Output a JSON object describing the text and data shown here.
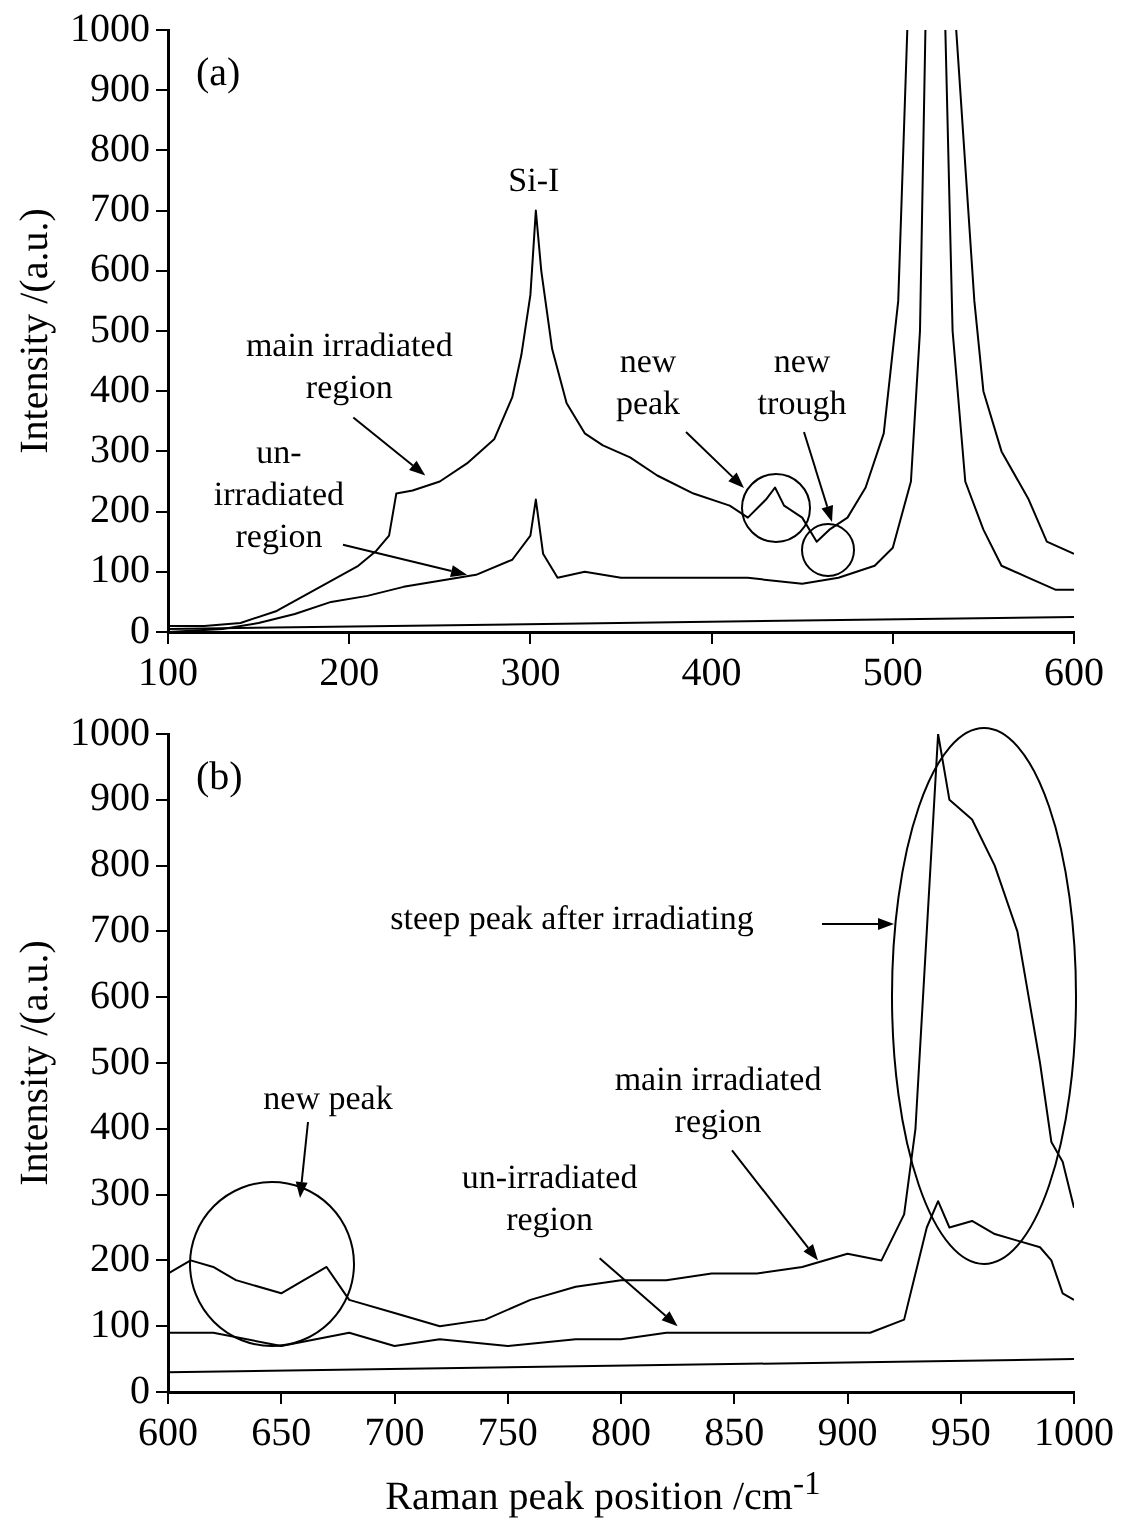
{
  "chart_data": [
    {
      "type": "line",
      "title": "(a)",
      "ylabel": "Intensity /(a.u.)",
      "xlim": [
        100,
        600
      ],
      "xticks": [
        100,
        200,
        300,
        400,
        500,
        600
      ],
      "ylim": [
        0,
        1000
      ],
      "yticks": [
        0,
        100,
        200,
        300,
        400,
        500,
        600,
        700,
        800,
        900,
        1000
      ],
      "grid": false,
      "legend": false,
      "marker": "none",
      "line_style": "solid",
      "series": [
        {
          "color": "#000000",
          "x": [
            100,
            120,
            140,
            160,
            175,
            190,
            205,
            215,
            222,
            226,
            235,
            250,
            265,
            280,
            290,
            295,
            300,
            303,
            306,
            312,
            320,
            330,
            340,
            355,
            370,
            390,
            410,
            420,
            430,
            435,
            440,
            450,
            458,
            465,
            475,
            485,
            495,
            503,
            508,
            520,
            535,
            545,
            550,
            560,
            575,
            585,
            600
          ],
          "values": [
            10,
            10,
            15,
            35,
            60,
            85,
            110,
            135,
            160,
            230,
            235,
            250,
            280,
            320,
            390,
            460,
            560,
            700,
            600,
            470,
            380,
            330,
            310,
            290,
            260,
            230,
            210,
            190,
            220,
            240,
            210,
            190,
            150,
            170,
            190,
            240,
            330,
            550,
            1000,
            null,
            1000,
            550,
            400,
            300,
            220,
            150,
            130
          ]
        },
        {
          "color": "#000000",
          "x": [
            100,
            130,
            150,
            170,
            190,
            210,
            230,
            250,
            270,
            290,
            300,
            303,
            307,
            315,
            330,
            350,
            380,
            420,
            450,
            470,
            490,
            500,
            510,
            515,
            518,
            524,
            529,
            533,
            540,
            550,
            560,
            575,
            590,
            600
          ],
          "values": [
            0,
            5,
            15,
            30,
            50,
            60,
            75,
            85,
            95,
            120,
            160,
            220,
            130,
            90,
            100,
            90,
            90,
            90,
            80,
            90,
            110,
            140,
            250,
            500,
            1000,
            null,
            1000,
            500,
            250,
            170,
            110,
            90,
            70,
            70
          ]
        },
        {
          "color": "#000000",
          "x": [
            100,
            600
          ],
          "values": [
            5,
            25
          ]
        }
      ],
      "annotations": [
        {
          "text": "Si-I",
          "x": 303,
          "y": 700
        },
        {
          "text": "main irradiated\nregion",
          "x": 242,
          "y": 260
        },
        {
          "text": "un-\nirradiated\nregion",
          "x": 265,
          "y": 95
        },
        "new\npeak",
        "new\ntrough"
      ]
    },
    {
      "type": "line",
      "title": "(b)",
      "xlabel": "Raman peak position /cm$^{-1}$",
      "ylabel": "Intensity /(a.u.)",
      "xlim": [
        600,
        1000
      ],
      "xticks": [
        600,
        650,
        700,
        750,
        800,
        850,
        900,
        950,
        1000
      ],
      "ylim": [
        0,
        1000
      ],
      "yticks": [
        0,
        100,
        200,
        300,
        400,
        500,
        600,
        700,
        800,
        900,
        1000
      ],
      "grid": false,
      "legend": false,
      "marker": "none",
      "line_style": "solid",
      "series": [
        {
          "color": "#000000",
          "x": [
            600,
            610,
            620,
            630,
            650,
            660,
            670,
            680,
            700,
            720,
            740,
            760,
            780,
            800,
            820,
            840,
            860,
            880,
            900,
            915,
            925,
            930,
            935,
            940,
            945,
            955,
            965,
            975,
            985,
            990,
            995,
            1000
          ],
          "values": [
            180,
            200,
            190,
            170,
            150,
            170,
            190,
            140,
            120,
            100,
            110,
            140,
            160,
            170,
            170,
            180,
            180,
            190,
            210,
            200,
            270,
            400,
            700,
            1000,
            900,
            870,
            800,
            700,
            500,
            380,
            350,
            280
          ]
        },
        {
          "color": "#000000",
          "x": [
            600,
            620,
            650,
            680,
            700,
            720,
            750,
            780,
            800,
            820,
            850,
            880,
            910,
            925,
            930,
            935,
            940,
            945,
            955,
            965,
            975,
            985,
            990,
            995,
            1000
          ],
          "values": [
            90,
            90,
            70,
            90,
            70,
            80,
            70,
            80,
            80,
            90,
            90,
            90,
            90,
            110,
            180,
            250,
            290,
            250,
            260,
            240,
            230,
            220,
            200,
            150,
            140
          ]
        },
        {
          "color": "#000000",
          "x": [
            600,
            1000
          ],
          "values": [
            30,
            50
          ]
        }
      ],
      "annotations": [
        "new peak",
        "steep peak after irradiating",
        {
          "text": "main irradiated\nregion",
          "x": 887,
          "y": 200
        },
        {
          "text": "un-irradiated\nregion",
          "x": 825,
          "y": 100
        }
      ]
    }
  ]
}
